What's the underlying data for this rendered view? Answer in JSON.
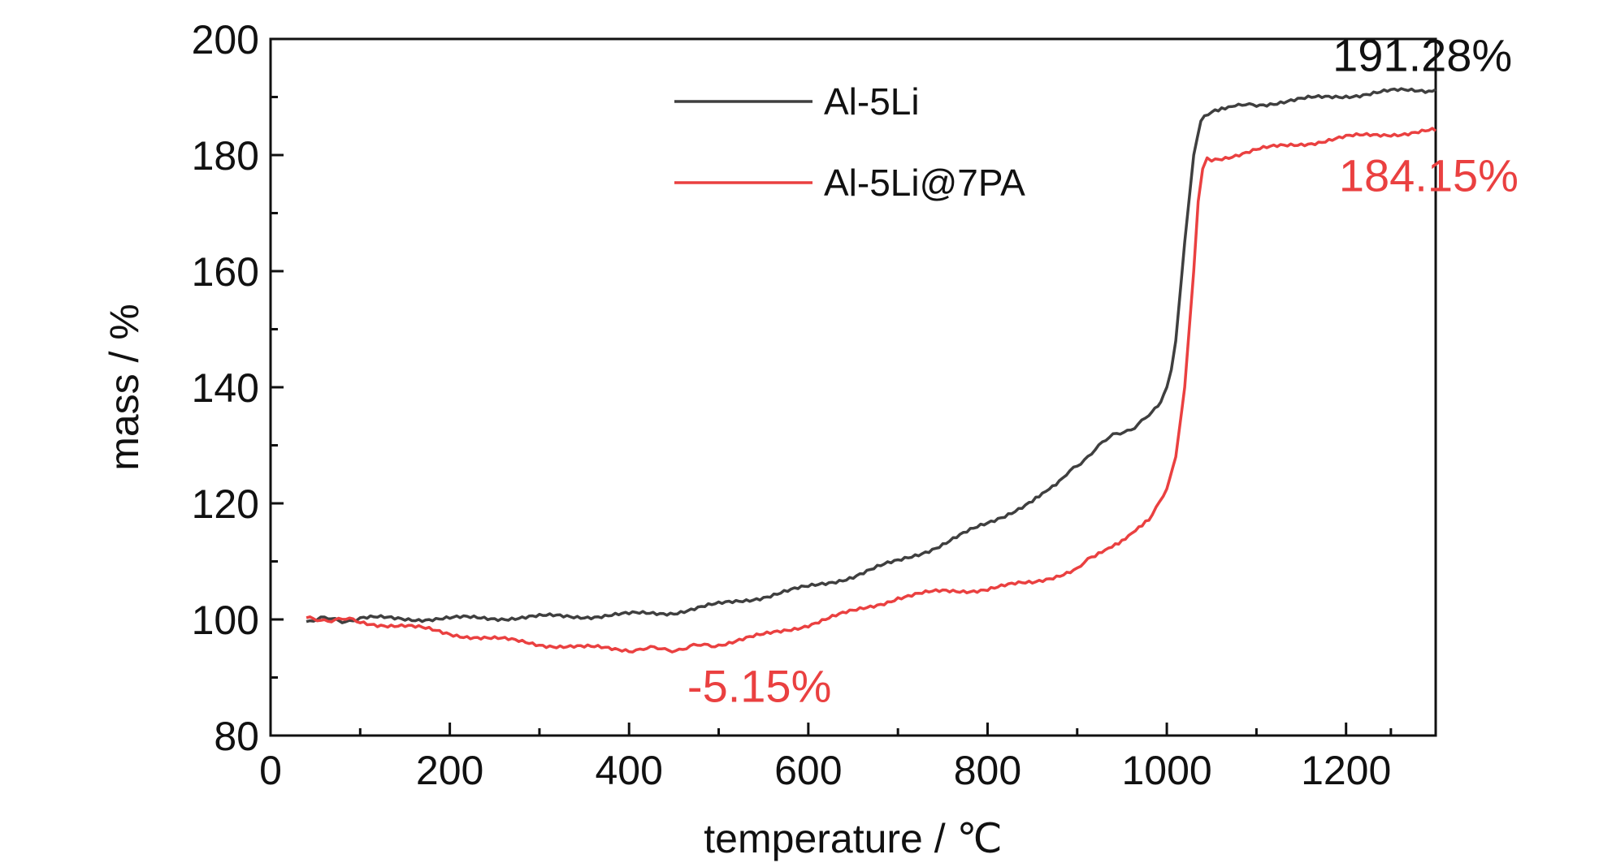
{
  "chart_data": {
    "type": "line",
    "title": "",
    "xlabel": "temperature / ℃",
    "ylabel": "mass / %",
    "xlim": [
      0,
      1300
    ],
    "ylim": [
      80,
      200
    ],
    "x_ticks": [
      0,
      200,
      400,
      600,
      800,
      1000,
      1200
    ],
    "y_ticks": [
      80,
      100,
      120,
      140,
      160,
      180,
      200
    ],
    "grid": false,
    "legend_position": "top-center",
    "series": [
      {
        "name": "Al-5Li",
        "color": "#3f3f3f",
        "x": [
          40,
          60,
          80,
          100,
          150,
          200,
          250,
          300,
          350,
          400,
          450,
          500,
          550,
          600,
          650,
          700,
          750,
          800,
          850,
          880,
          900,
          920,
          940,
          960,
          980,
          990,
          1000,
          1005,
          1010,
          1020,
          1030,
          1038,
          1042,
          1050,
          1080,
          1100,
          1150,
          1200,
          1250,
          1300
        ],
        "y": [
          99.8,
          100.0,
          99.9,
          100.1,
          100.2,
          100.1,
          100.3,
          100.4,
          100.6,
          100.8,
          101.3,
          102.5,
          104.0,
          105.5,
          107.5,
          110.0,
          113.0,
          116.5,
          120.5,
          123.5,
          126.5,
          129.5,
          131.5,
          133.0,
          135.0,
          137.0,
          140.0,
          143.0,
          148.0,
          165.0,
          180.0,
          186.0,
          186.8,
          187.3,
          188.3,
          188.8,
          189.5,
          190.3,
          190.9,
          191.28
        ]
      },
      {
        "name": "Al-5Li@7PA",
        "color": "#ea4040",
        "x": [
          40,
          60,
          80,
          100,
          150,
          200,
          250,
          300,
          350,
          400,
          440,
          460,
          500,
          550,
          600,
          650,
          700,
          750,
          800,
          850,
          900,
          920,
          950,
          980,
          1000,
          1010,
          1020,
          1030,
          1035,
          1040,
          1045,
          1050,
          1100,
          1150,
          1200,
          1250,
          1300
        ],
        "y": [
          100.0,
          100.1,
          99.9,
          99.6,
          98.8,
          97.6,
          96.6,
          95.8,
          95.1,
          94.9,
          94.85,
          95.0,
          95.8,
          97.2,
          99.2,
          101.3,
          103.8,
          104.8,
          105.3,
          106.3,
          108.8,
          110.8,
          113.5,
          117.5,
          122.5,
          128.0,
          140.0,
          160.0,
          172.0,
          178.0,
          179.0,
          179.3,
          180.8,
          182.0,
          183.0,
          183.7,
          184.15
        ]
      }
    ],
    "annotations": [
      {
        "text": "191.28%",
        "color": "#111111",
        "x": 1185,
        "y": 194.5
      },
      {
        "text": "184.15%",
        "color": "#ea4040",
        "x": 1192,
        "y": 173.8
      },
      {
        "text": "-5.15%",
        "color": "#ea4040",
        "x": 465,
        "y": 85.8
      }
    ]
  }
}
